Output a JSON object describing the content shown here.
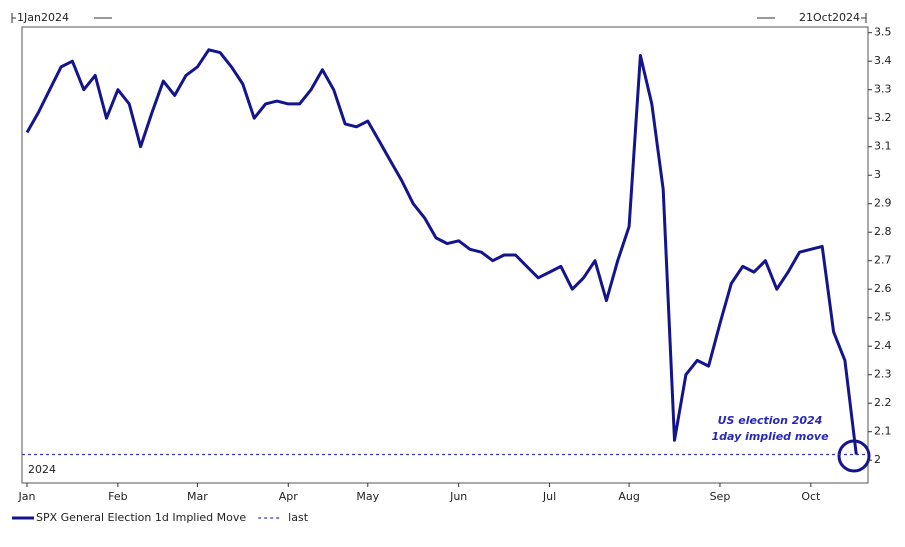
{
  "chart_data": {
    "type": "line",
    "date_range": [
      "1Jan2024",
      "21Oct2024"
    ],
    "categories": [
      "Jan",
      null,
      null,
      null,
      null,
      null,
      null,
      null,
      "Feb",
      null,
      null,
      null,
      null,
      null,
      null,
      "Mar",
      null,
      null,
      null,
      null,
      null,
      null,
      null,
      "Apr",
      null,
      null,
      null,
      null,
      null,
      null,
      "May",
      null,
      null,
      null,
      null,
      null,
      null,
      null,
      "Jun",
      null,
      null,
      null,
      null,
      null,
      null,
      null,
      "Jul",
      null,
      null,
      null,
      null,
      null,
      null,
      "Aug",
      null,
      null,
      null,
      null,
      null,
      null,
      null,
      "Sep",
      null,
      null,
      null,
      null,
      null,
      null,
      null,
      "Oct",
      null,
      null,
      null,
      null
    ],
    "series": [
      {
        "name": "SPX General Election 1d Implied Move",
        "color": "#14148c",
        "values": [
          3.15,
          3.22,
          3.3,
          3.38,
          3.4,
          3.3,
          3.35,
          3.2,
          3.3,
          3.25,
          3.1,
          3.22,
          3.33,
          3.28,
          3.35,
          3.38,
          3.44,
          3.43,
          3.38,
          3.32,
          3.2,
          3.25,
          3.26,
          3.25,
          3.25,
          3.3,
          3.37,
          3.3,
          3.18,
          3.17,
          3.19,
          3.12,
          3.05,
          2.98,
          2.9,
          2.85,
          2.78,
          2.76,
          2.77,
          2.74,
          2.73,
          2.7,
          2.72,
          2.72,
          2.68,
          2.64,
          2.66,
          2.68,
          2.6,
          2.64,
          2.7,
          2.56,
          2.7,
          2.82,
          3.42,
          3.25,
          2.95,
          2.07,
          2.3,
          2.35,
          2.33,
          2.48,
          2.62,
          2.68,
          2.66,
          2.7,
          2.6,
          2.66,
          2.73,
          2.74,
          2.75,
          2.45,
          2.35,
          2.02
        ]
      }
    ],
    "reference_lines": [
      {
        "name": "last",
        "value": 2.02,
        "color": "#3a3ab0",
        "dash": true
      }
    ],
    "annotations": [
      {
        "text": "US election 2024"
      },
      {
        "text": "1day implied move"
      },
      {
        "text": "2024"
      }
    ],
    "ylim": [
      1.92,
      3.52
    ],
    "yticks": [
      2,
      2.1,
      2.2,
      2.3,
      2.4,
      2.5,
      2.6,
      2.7,
      2.8,
      2.9,
      3,
      3.1,
      3.2,
      3.3,
      3.4,
      3.5
    ],
    "y_axis_side": "right"
  }
}
